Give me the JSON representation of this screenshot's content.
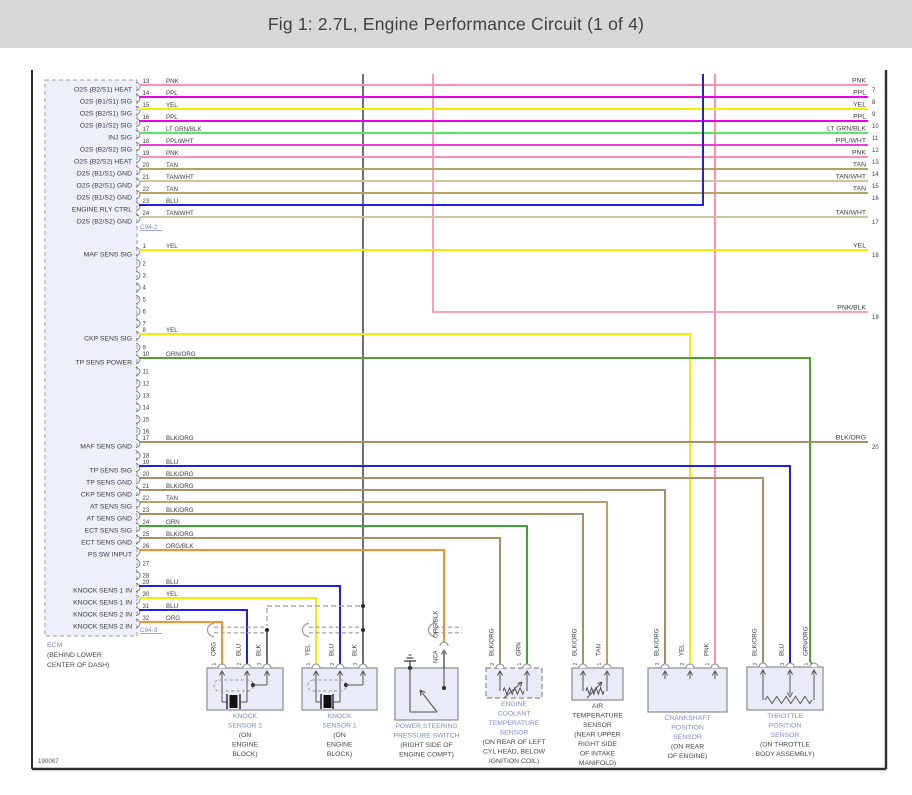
{
  "title": "Fig 1: 2.7L, Engine Performance Circuit (1 of 4)",
  "footer_code": "190087",
  "accent_blue": "#7e8bc8",
  "colors": {
    "PNK": "#ff8fae",
    "PPL": "#ea00ea",
    "YEL": "#f6ec00",
    "LT GRN/BLK": "#5ae65a",
    "PPL/WHT": "#ec40d8",
    "TAN": "#b7a163",
    "TAN/WHT": "#cfc49c",
    "BLU": "#2020dd",
    "GRN/ORG": "#53a032",
    "BLK/ORG": "#a6906a",
    "GRN": "#3da53d",
    "ORG": "#f79327",
    "ORG/BLK": "#ee9133",
    "PNK/BLK": "#f2a3b6",
    "BLK": "#4b4b4b"
  },
  "ecm": {
    "name": "ECM",
    "location_lines": [
      "(BEHIND LOWER",
      "CENTER OF DASH)"
    ],
    "connectors": [
      {
        "id": "C94-2",
        "pins": [
          {
            "n": 13,
            "label": "O2S (B2/S1) HEAT",
            "color": "PNK"
          },
          {
            "n": 14,
            "label": "O2S (B1/S1) SIG",
            "color": "PPL"
          },
          {
            "n": 15,
            "label": "O2S (B2/S1) SIG",
            "color": "YEL"
          },
          {
            "n": 16,
            "label": "O2S (B1/S2) SIG",
            "color": "PPL"
          },
          {
            "n": 17,
            "label": "INJ SIG",
            "color": "LT GRN/BLK"
          },
          {
            "n": 18,
            "label": "O2S (B2/S2) SIG",
            "color": "PPL/WHT"
          },
          {
            "n": 19,
            "label": "O2S (B2/S2) HEAT",
            "color": "PNK"
          },
          {
            "n": 20,
            "label": "O2S (B1/S1) GND",
            "color": "TAN"
          },
          {
            "n": 21,
            "label": "O2S (B2/S1) GND",
            "color": "TAN/WHT"
          },
          {
            "n": 22,
            "label": "O2S (B1/S2) GND",
            "color": "TAN"
          },
          {
            "n": 23,
            "label": "ENGINE RLY CTRL",
            "color": "BLU"
          },
          {
            "n": 24,
            "label": "O2S (B2/S2) GND",
            "color": "TAN/WHT"
          }
        ]
      },
      {
        "id": "C94-3",
        "pins": [
          {
            "n": 1,
            "label": "MAF SENS SIG",
            "color": "YEL"
          },
          {
            "n": 2
          },
          {
            "n": 3
          },
          {
            "n": 4
          },
          {
            "n": 5
          },
          {
            "n": 6
          },
          {
            "n": 7
          },
          {
            "n": 8,
            "label": "CKP SENS SIG",
            "color": "YEL"
          },
          {
            "n": 9
          },
          {
            "n": 10,
            "label": "TP SENS POWER",
            "color": "GRN/ORG"
          },
          {
            "n": 11
          },
          {
            "n": 12
          },
          {
            "n": 13
          },
          {
            "n": 14
          },
          {
            "n": 15
          },
          {
            "n": 16
          },
          {
            "n": 17,
            "label": "MAF SENS GND",
            "color": "BLK/ORG"
          },
          {
            "n": 18
          },
          {
            "n": 19,
            "label": "TP SENS SIG",
            "color": "BLU"
          },
          {
            "n": 20,
            "label": "TP SENS GND",
            "color": "BLK/ORG"
          },
          {
            "n": 21,
            "label": "CKP SENS GND",
            "color": "BLK/ORG"
          },
          {
            "n": 22,
            "label": "AT SENS SIG",
            "color": "TAN"
          },
          {
            "n": 23,
            "label": "AT SENS GND",
            "color": "BLK/ORG"
          },
          {
            "n": 24,
            "label": "ECT SENS SIG",
            "color": "GRN"
          },
          {
            "n": 25,
            "label": "ECT SENS GND",
            "color": "BLK/ORG"
          },
          {
            "n": 26,
            "label": "PS SW INPUT",
            "color": "ORG/BLK"
          },
          {
            "n": 27
          },
          {
            "n": 28
          },
          {
            "n": 29,
            "label": "KNOCK SENS 1 IN",
            "color": "BLU"
          },
          {
            "n": 30,
            "label": "KNOCK SENS 1 IN",
            "color": "YEL"
          },
          {
            "n": 31,
            "label": "KNOCK SENS 2 IN",
            "color": "BLU"
          },
          {
            "n": 32,
            "label": "KNOCK SENS 2 IN",
            "color": "ORG"
          }
        ]
      }
    ]
  },
  "right_pins": [
    {
      "n": 7,
      "color": "PNK"
    },
    {
      "n": 8,
      "color": "PPL"
    },
    {
      "n": 9,
      "color": "YEL"
    },
    {
      "n": 10,
      "color": "PPL"
    },
    {
      "n": 11,
      "color": "LT GRN/BLK"
    },
    {
      "n": 12,
      "color": "PPL/WHT"
    },
    {
      "n": 13,
      "color": "PNK"
    },
    {
      "n": 14,
      "color": "TAN"
    },
    {
      "n": 15,
      "color": "TAN/WHT"
    },
    {
      "n": 16,
      "color": "TAN"
    },
    {
      "n": 17,
      "color": "TAN/WHT"
    },
    {
      "n": 18,
      "color": "YEL"
    },
    {
      "n": 19,
      "color": "PNK/BLK"
    },
    {
      "n": 20,
      "color": "BLK/ORG"
    }
  ],
  "sensors": [
    {
      "id": "knock2",
      "name_lines": [
        "KNOCK",
        "SENSOR 2"
      ],
      "name_plain": false,
      "location_lines": [
        "(ON",
        "ENGINE",
        "BLOCK)"
      ],
      "pins": [
        {
          "n": "1",
          "color": "ORG"
        },
        {
          "n": "2",
          "color": "BLU"
        },
        {
          "n": "3",
          "color": "BLK"
        }
      ]
    },
    {
      "id": "knock1",
      "name_lines": [
        "KNOCK",
        "SENSOR 1"
      ],
      "name_plain": false,
      "location_lines": [
        "(ON",
        "ENGINE",
        "BLOCK)"
      ],
      "pins": [
        {
          "n": "1",
          "color": "YEL"
        },
        {
          "n": "2",
          "color": "BLU"
        },
        {
          "n": "3",
          "color": "BLK"
        }
      ]
    },
    {
      "id": "ps",
      "name_lines": [
        "POWER STEERING",
        "PRESSURE SWITCH"
      ],
      "name_plain": false,
      "location_lines": [
        "(RIGHT SIDE OF",
        "ENGINE COMPT)"
      ],
      "pins": [
        {
          "n": "1",
          "color": "ORG/BLK",
          "label": "NCA"
        }
      ]
    },
    {
      "id": "ect",
      "name_lines": [
        "ENGINE",
        "COOLANT",
        "TEMPERATURE",
        "SENSOR"
      ],
      "name_plain": false,
      "location_lines": [
        "(ON REAR OF LEFT",
        "CYL HEAD, BELOW",
        "IGNITION COIL)"
      ],
      "pins": [
        {
          "n": "2",
          "color": "BLK/ORG"
        },
        {
          "n": "1",
          "color": "GRN"
        }
      ]
    },
    {
      "id": "at",
      "name_lines": [
        "AIR",
        "TEMPERATURE",
        "SENSOR"
      ],
      "name_plain": true,
      "location_lines": [
        "(NEAR UPPER",
        "RIGHT SIDE",
        "OF INTAKE",
        "MANIFOLD)"
      ],
      "pins": [
        {
          "n": "2",
          "color": "BLK/ORG"
        },
        {
          "n": "1",
          "color": "TAN"
        }
      ]
    },
    {
      "id": "crank",
      "name_lines": [
        "CRANKSHAFT",
        "POSITION",
        "SENSOR"
      ],
      "name_plain": false,
      "location_lines": [
        "(ON REAR",
        "OF ENGINE)"
      ],
      "pins": [
        {
          "n": "3",
          "color": "BLK/ORG"
        },
        {
          "n": "2",
          "color": "YEL"
        },
        {
          "n": "1",
          "color": "PNK"
        }
      ]
    },
    {
      "id": "tp",
      "name_lines": [
        "THROTTLE",
        "POSITION",
        "SENSOR"
      ],
      "name_plain": false,
      "location_lines": [
        "(ON THROTTLE",
        "BODY ASSEMBLY)"
      ],
      "pins": [
        {
          "n": "2",
          "color": "BLK/ORG"
        },
        {
          "n": "3",
          "color": "BLU"
        },
        {
          "n": "1",
          "color": "GRN/ORG"
        }
      ]
    }
  ]
}
